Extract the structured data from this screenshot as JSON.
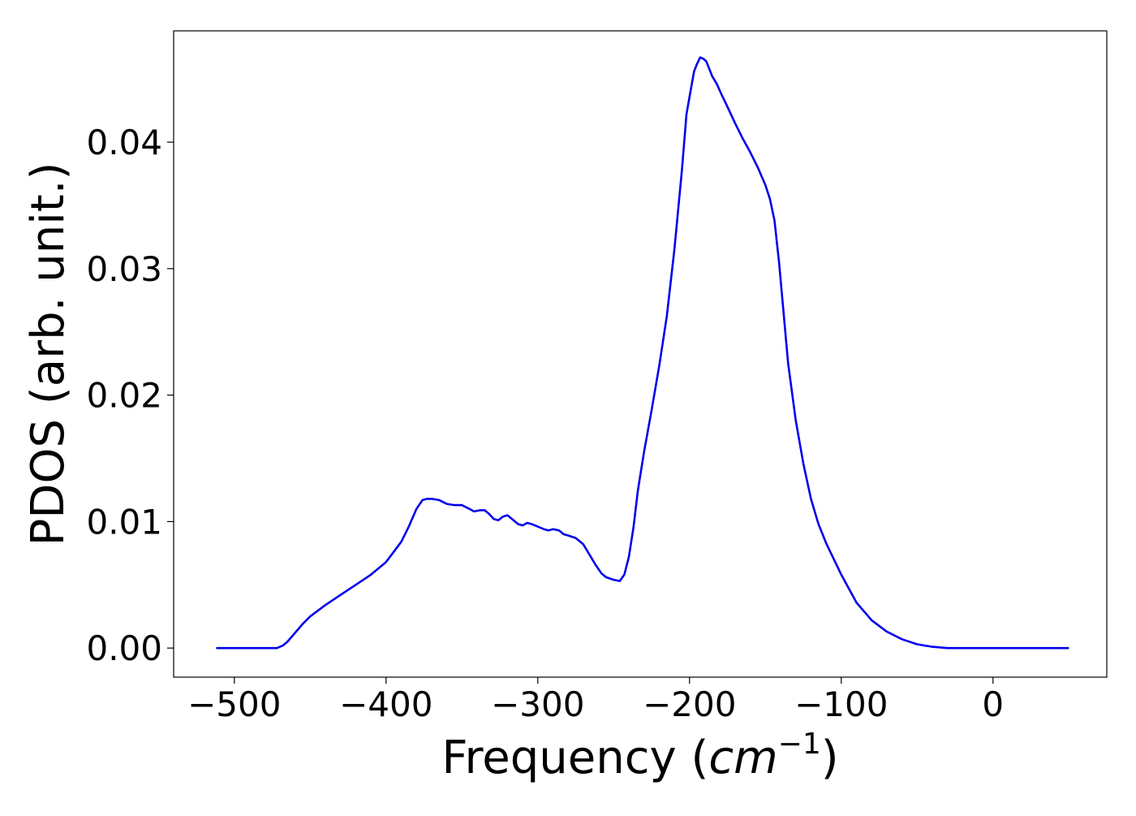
{
  "chart_data": {
    "type": "line",
    "title": "",
    "xlabel_main": "Frequency (",
    "xlabel_unit": "cm",
    "xlabel_exp": "−1",
    "xlabel_close": ")",
    "ylabel": "PDOS (arb. unit.)",
    "xlim": [
      -540,
      75
    ],
    "ylim": [
      -0.0023,
      0.0488
    ],
    "x_ticks": [
      -500,
      -400,
      -300,
      -200,
      -100,
      0
    ],
    "x_tick_labels": [
      "−500",
      "−400",
      "−300",
      "−200",
      "−100",
      "0"
    ],
    "y_ticks": [
      0.0,
      0.01,
      0.02,
      0.03,
      0.04
    ],
    "y_tick_labels": [
      "0.00",
      "0.01",
      "0.02",
      "0.03",
      "0.04"
    ],
    "grid": false,
    "series": [
      {
        "color": "#0000ee",
        "x": [
          -512,
          -500,
          -490,
          -480,
          -472,
          -468,
          -465,
          -460,
          -455,
          -450,
          -440,
          -430,
          -420,
          -410,
          -400,
          -390,
          -385,
          -380,
          -376,
          -373,
          -370,
          -365,
          -360,
          -355,
          -350,
          -345,
          -342,
          -338,
          -335,
          -332,
          -329,
          -326,
          -323,
          -320,
          -316,
          -313,
          -310,
          -307,
          -304,
          -300,
          -296,
          -293,
          -290,
          -286,
          -283,
          -280,
          -275,
          -270,
          -266,
          -262,
          -258,
          -255,
          -250,
          -246,
          -243,
          -240,
          -237,
          -234,
          -230,
          -225,
          -220,
          -215,
          -210,
          -205,
          -202,
          -200,
          -197,
          -195,
          -193,
          -191,
          -189,
          -187,
          -185,
          -182,
          -179,
          -175,
          -170,
          -165,
          -160,
          -155,
          -150,
          -147,
          -144,
          -141,
          -138,
          -135,
          -130,
          -125,
          -120,
          -115,
          -110,
          -100,
          -90,
          -80,
          -70,
          -60,
          -50,
          -40,
          -30,
          -20,
          -10,
          0,
          10,
          20,
          30,
          50
        ],
        "y": [
          0.0,
          0.0,
          0.0,
          0.0,
          0.0,
          0.0002,
          0.0005,
          0.0012,
          0.0019,
          0.0025,
          0.0034,
          0.0042,
          0.005,
          0.0058,
          0.0068,
          0.0084,
          0.0096,
          0.011,
          0.0117,
          0.0118,
          0.0118,
          0.0117,
          0.0114,
          0.0113,
          0.0113,
          0.011,
          0.0108,
          0.0109,
          0.0109,
          0.0106,
          0.0102,
          0.0101,
          0.0104,
          0.0105,
          0.0101,
          0.0098,
          0.0097,
          0.0099,
          0.0098,
          0.0096,
          0.0094,
          0.0093,
          0.0094,
          0.0093,
          0.009,
          0.0089,
          0.0087,
          0.0082,
          0.0074,
          0.0066,
          0.0059,
          0.0056,
          0.0054,
          0.0053,
          0.0058,
          0.0072,
          0.0095,
          0.0125,
          0.0155,
          0.0188,
          0.0223,
          0.0262,
          0.0315,
          0.0378,
          0.0422,
          0.0436,
          0.0456,
          0.0462,
          0.0467,
          0.0466,
          0.0464,
          0.0458,
          0.0452,
          0.0446,
          0.0438,
          0.0428,
          0.0415,
          0.0403,
          0.0392,
          0.038,
          0.0366,
          0.0355,
          0.0338,
          0.0305,
          0.0265,
          0.0225,
          0.018,
          0.0146,
          0.0118,
          0.0098,
          0.0083,
          0.0058,
          0.0036,
          0.0022,
          0.0013,
          0.0007,
          0.0003,
          0.0001,
          0.0,
          0.0,
          0.0,
          0.0,
          0.0,
          0.0,
          0.0,
          0.0
        ]
      }
    ]
  }
}
